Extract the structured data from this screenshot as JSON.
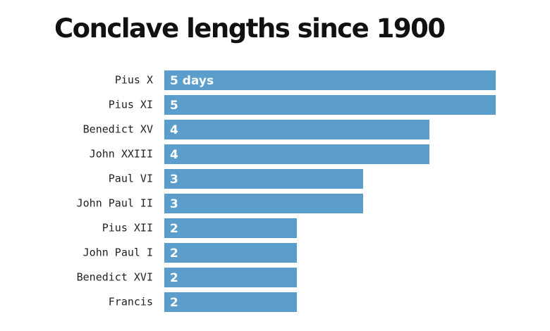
{
  "chart_data": {
    "type": "bar",
    "orientation": "horizontal",
    "title": "Conclave lengths since 1900",
    "categories": [
      "Pius X",
      "Pius XI",
      "Benedict XV",
      "John XXIII",
      "Paul VI",
      "John Paul II",
      "Pius XII",
      "John Paul I",
      "Benedict XVI",
      "Francis"
    ],
    "values": [
      5,
      5,
      4,
      4,
      3,
      3,
      2,
      2,
      2,
      2
    ],
    "value_labels": [
      "5 days",
      "5",
      "4",
      "4",
      "3",
      "3",
      "2",
      "2",
      "2",
      "2"
    ],
    "color": "#5b9ecb",
    "xlim": [
      0,
      5
    ]
  }
}
